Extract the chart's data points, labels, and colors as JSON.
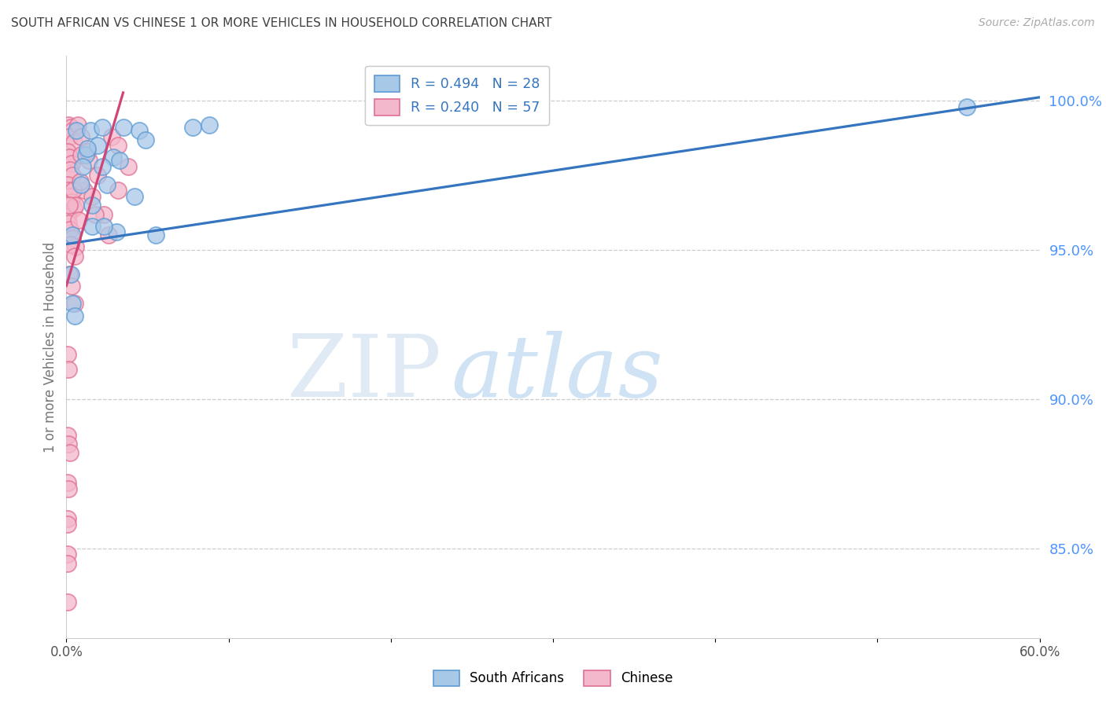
{
  "title": "SOUTH AFRICAN VS CHINESE 1 OR MORE VEHICLES IN HOUSEHOLD CORRELATION CHART",
  "source": "Source: ZipAtlas.com",
  "ylabel": "1 or more Vehicles in Household",
  "legend_blue": "R = 0.494   N = 28",
  "legend_pink": "R = 0.240   N = 57",
  "blue_face": "#a8c8e8",
  "blue_edge": "#5b9bd5",
  "blue_line": "#3575c0",
  "pink_face": "#f4b8cc",
  "pink_edge": "#e07090",
  "pink_line": "#d04575",
  "title_color": "#404040",
  "source_color": "#aaaaaa",
  "right_axis_color": "#4d94ff",
  "grid_color": "#cccccc",
  "xlim": [
    0.0,
    60.0
  ],
  "ylim": [
    82.0,
    101.5
  ],
  "right_yticks": [
    100.0,
    95.0,
    90.0,
    85.0
  ],
  "right_yticklabels": [
    "100.0%",
    "95.0%",
    "90.0%",
    "85.0%"
  ],
  "xticks": [
    0.0,
    10.0,
    20.0,
    30.0,
    40.0,
    50.0,
    60.0
  ],
  "xticklabels": [
    "0.0%",
    "",
    "",
    "",
    "",
    "",
    "60.0%"
  ],
  "blue_x": [
    0.6,
    1.5,
    2.2,
    3.5,
    4.5,
    7.8,
    8.8,
    1.2,
    1.9,
    2.9,
    1.0,
    2.5,
    4.2,
    5.5,
    1.6,
    3.1,
    0.35,
    0.5,
    1.3,
    2.2,
    3.3,
    4.9,
    0.9,
    1.6,
    2.3,
    55.5,
    0.25,
    0.35
  ],
  "blue_y": [
    99.0,
    99.0,
    99.1,
    99.1,
    99.0,
    99.1,
    99.2,
    98.2,
    98.5,
    98.1,
    97.8,
    97.2,
    96.8,
    95.5,
    95.8,
    95.6,
    93.2,
    92.8,
    98.4,
    97.8,
    98.0,
    98.7,
    97.2,
    96.5,
    95.8,
    99.8,
    94.2,
    95.5
  ],
  "pink_x": [
    0.15,
    0.25,
    0.35,
    0.2,
    0.45,
    0.1,
    0.18,
    0.3,
    0.22,
    0.38,
    0.08,
    0.15,
    0.22,
    0.3,
    0.45,
    0.08,
    0.15,
    0.22,
    0.38,
    0.55,
    0.9,
    1.4,
    1.9,
    1.1,
    1.6,
    2.3,
    2.8,
    3.2,
    3.8,
    0.7,
    0.9,
    1.3,
    0.18,
    0.32,
    0.5,
    0.08,
    0.15,
    0.08,
    0.15,
    0.22,
    0.08,
    0.12,
    0.08,
    0.1,
    0.08,
    0.1,
    0.06,
    0.42,
    0.58,
    0.78,
    0.25,
    0.5,
    0.85,
    1.8,
    2.6,
    3.2,
    0.2
  ],
  "pink_y": [
    99.2,
    99.1,
    99.0,
    98.8,
    98.6,
    98.3,
    98.1,
    97.9,
    97.7,
    97.5,
    97.2,
    97.0,
    96.8,
    96.6,
    96.4,
    96.1,
    95.9,
    95.7,
    95.4,
    95.1,
    98.2,
    98.0,
    97.5,
    97.0,
    96.8,
    96.2,
    98.8,
    98.5,
    97.8,
    99.2,
    98.8,
    98.3,
    94.2,
    93.8,
    93.2,
    91.5,
    91.0,
    88.8,
    88.5,
    88.2,
    87.2,
    87.0,
    86.0,
    85.8,
    84.8,
    84.5,
    83.2,
    97.0,
    96.5,
    96.0,
    95.2,
    94.8,
    97.3,
    96.2,
    95.5,
    97.0,
    96.5
  ],
  "blue_trend_x": [
    0.0,
    60.0
  ],
  "blue_trend_y_intercept": 95.2,
  "blue_trend_slope": 0.082,
  "pink_trend_x_end": 3.5,
  "pink_trend_y_intercept": 93.8,
  "pink_trend_slope": 1.85
}
